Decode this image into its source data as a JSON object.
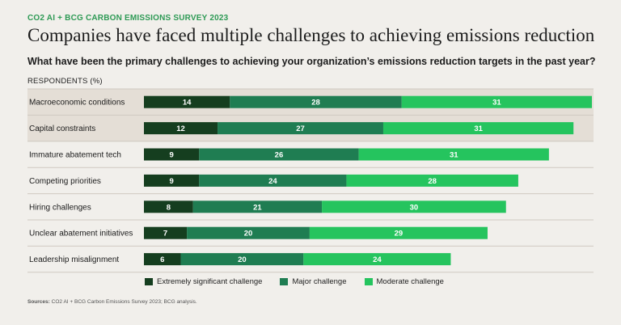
{
  "header": {
    "kicker": "CO2 AI + BCG CARBON EMISSIONS SURVEY 2023",
    "title": "Companies have faced multiple challenges to achieving emissions reduction",
    "question": "What have been the primary challenges to achieving your organization’s emissions reduction targets in the past year?",
    "unit": "RESPONDENTS (%)"
  },
  "source": {
    "label": "Sources:",
    "text": "CO2 AI + BCG Carbon Emissions Survey 2023; BCG analysis."
  },
  "colors": {
    "extreme": "#153e1f",
    "major": "#1f7d52",
    "moderate": "#25c45e",
    "highlight_row": "#e4ded6"
  },
  "chart_data": {
    "type": "bar",
    "orientation": "horizontal",
    "stacked": true,
    "categories": [
      "Macroeconomic conditions",
      "Capital constraints",
      "Immature abatement tech",
      "Competing priorities",
      "Hiring challenges",
      "Unclear abatement initiatives",
      "Leadership misalignment"
    ],
    "highlighted": [
      true,
      true,
      false,
      false,
      false,
      false,
      false
    ],
    "series": [
      {
        "name": "Extremely significant challenge",
        "values": [
          14,
          12,
          9,
          9,
          8,
          7,
          6
        ]
      },
      {
        "name": "Major challenge",
        "values": [
          28,
          27,
          26,
          24,
          21,
          20,
          20
        ]
      },
      {
        "name": "Moderate challenge",
        "values": [
          31,
          31,
          31,
          28,
          30,
          29,
          24
        ]
      }
    ],
    "xlim": [
      0,
      73
    ],
    "legend_position": "bottom"
  }
}
